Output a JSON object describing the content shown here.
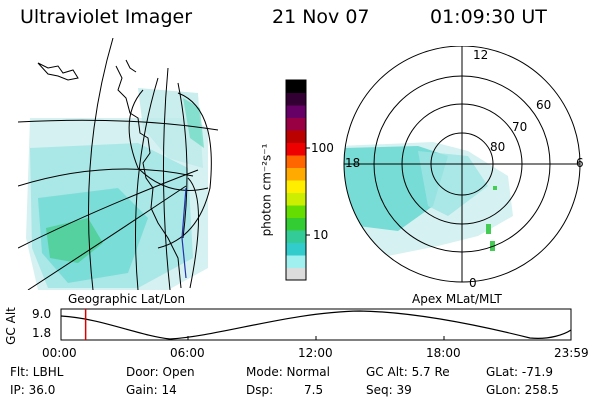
{
  "header": {
    "instrument": "Ultraviolet Imager",
    "date": "21 Nov 07",
    "time": "01:09:30 UT"
  },
  "left_panel": {
    "caption": "Geographic Lat/Lon"
  },
  "right_panel": {
    "caption": "Apex MLat/MLT",
    "mlt_labels": [
      "12",
      "18",
      "6",
      "0"
    ],
    "mlat_labels": [
      "60",
      "70",
      "80"
    ]
  },
  "colorbar": {
    "unit_label": "photon cm⁻²s⁻¹",
    "ticks": [
      "100",
      "10"
    ],
    "scale": "log",
    "colors": [
      "#dcdcdc",
      "#a0f0f0",
      "#33cccc",
      "#33cc99",
      "#33cc33",
      "#66dd00",
      "#ccee00",
      "#ffee00",
      "#ffaa00",
      "#ff6600",
      "#ee0000",
      "#bb0000",
      "#990044",
      "#660066",
      "#330033",
      "#000000"
    ]
  },
  "altitude_plot": {
    "ylabel": "GC Alt",
    "yticks": [
      "9.0",
      "1.8"
    ],
    "xticks": [
      "00:00",
      "06:00",
      "12:00",
      "18:00",
      "23:59"
    ],
    "current_time_marker": "01:09:30",
    "marker_color": "#dd0000"
  },
  "info": {
    "filter": "Flt: LBHL",
    "door": "Door: Open",
    "mode": "Mode: Normal",
    "gc_alt": "GC Alt: 5.7 Re",
    "glat": "GLat: -71.9",
    "ip": "IP: 36.0",
    "gain": "Gain: 14",
    "dsp": "Dsp:",
    "dsp_value": "7.5",
    "seq": "Seq: 39",
    "glon": "GLon: 258.5"
  }
}
